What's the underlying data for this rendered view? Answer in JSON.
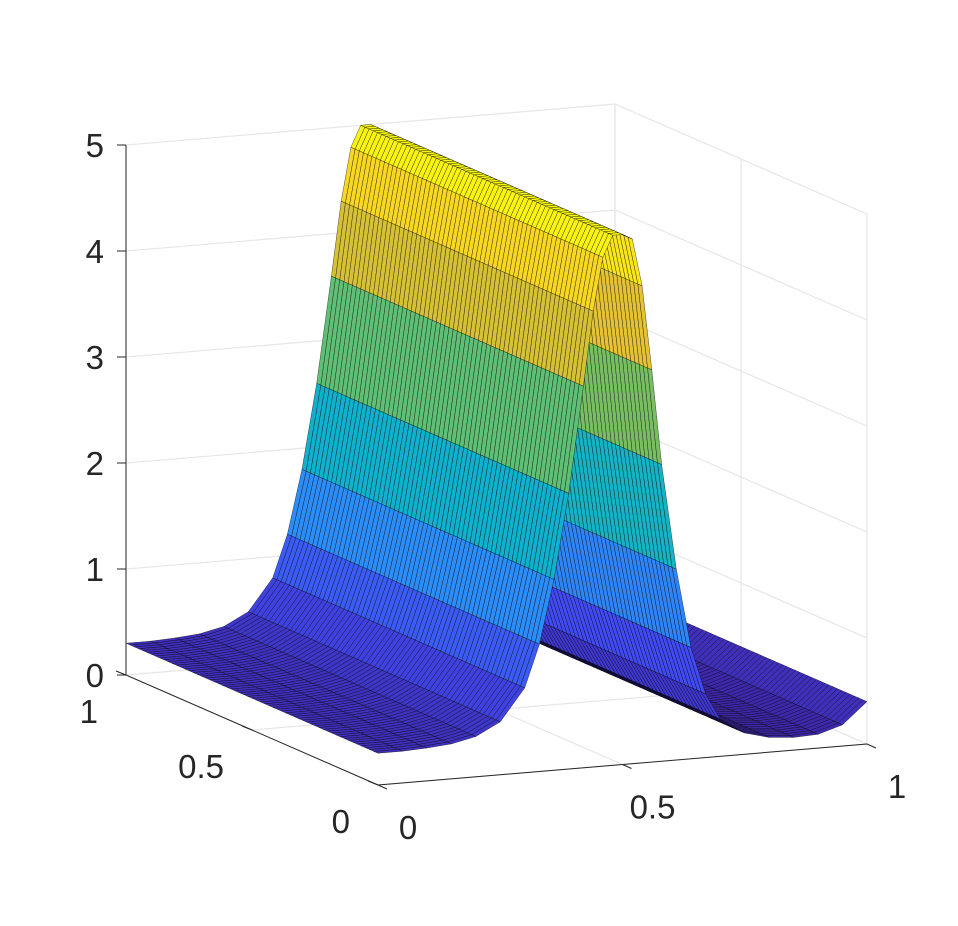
{
  "chart_data": {
    "type": "surface",
    "title": "",
    "xlabel": "",
    "ylabel": "",
    "zlabel": "",
    "xlim": [
      0,
      1
    ],
    "ylim": [
      0,
      1
    ],
    "zlim": [
      0,
      5
    ],
    "x_ticks": [
      "0",
      "0.5",
      "1"
    ],
    "y_ticks": [
      "0",
      "0.5",
      "1"
    ],
    "z_ticks": [
      "0",
      "1",
      "2",
      "3",
      "4",
      "5"
    ],
    "grid": true,
    "colormap": "parula",
    "colormap_stops": [
      "#3e26a8",
      "#4149f3",
      "#2c8ef9",
      "#11b1cc",
      "#3ec08b",
      "#b4be3c",
      "#f8c330",
      "#f9fb0e"
    ],
    "edge_color": "#000000",
    "surface": {
      "description_function": "z(x) = 5 * exp(-((x - 0.5) / 0.085)^2) + 0.1, constant along y; x plateau near x in [0.48, 0.52]",
      "x": [
        0.0,
        0.05,
        0.1,
        0.15,
        0.2,
        0.25,
        0.3,
        0.33,
        0.36,
        0.39,
        0.42,
        0.44,
        0.46,
        0.48,
        0.5,
        0.52,
        0.54,
        0.56,
        0.58,
        0.61,
        0.64,
        0.67,
        0.7,
        0.75,
        0.8,
        0.85,
        0.9,
        0.95,
        1.0
      ],
      "z": [
        0.3,
        0.3,
        0.31,
        0.33,
        0.38,
        0.5,
        0.8,
        1.2,
        1.8,
        2.6,
        3.6,
        4.3,
        4.8,
        5.0,
        5.0,
        4.95,
        4.5,
        3.7,
        2.8,
        1.8,
        1.05,
        0.6,
        0.35,
        0.2,
        0.14,
        0.12,
        0.13,
        0.2,
        0.4
      ],
      "y_samples": 60
    }
  }
}
